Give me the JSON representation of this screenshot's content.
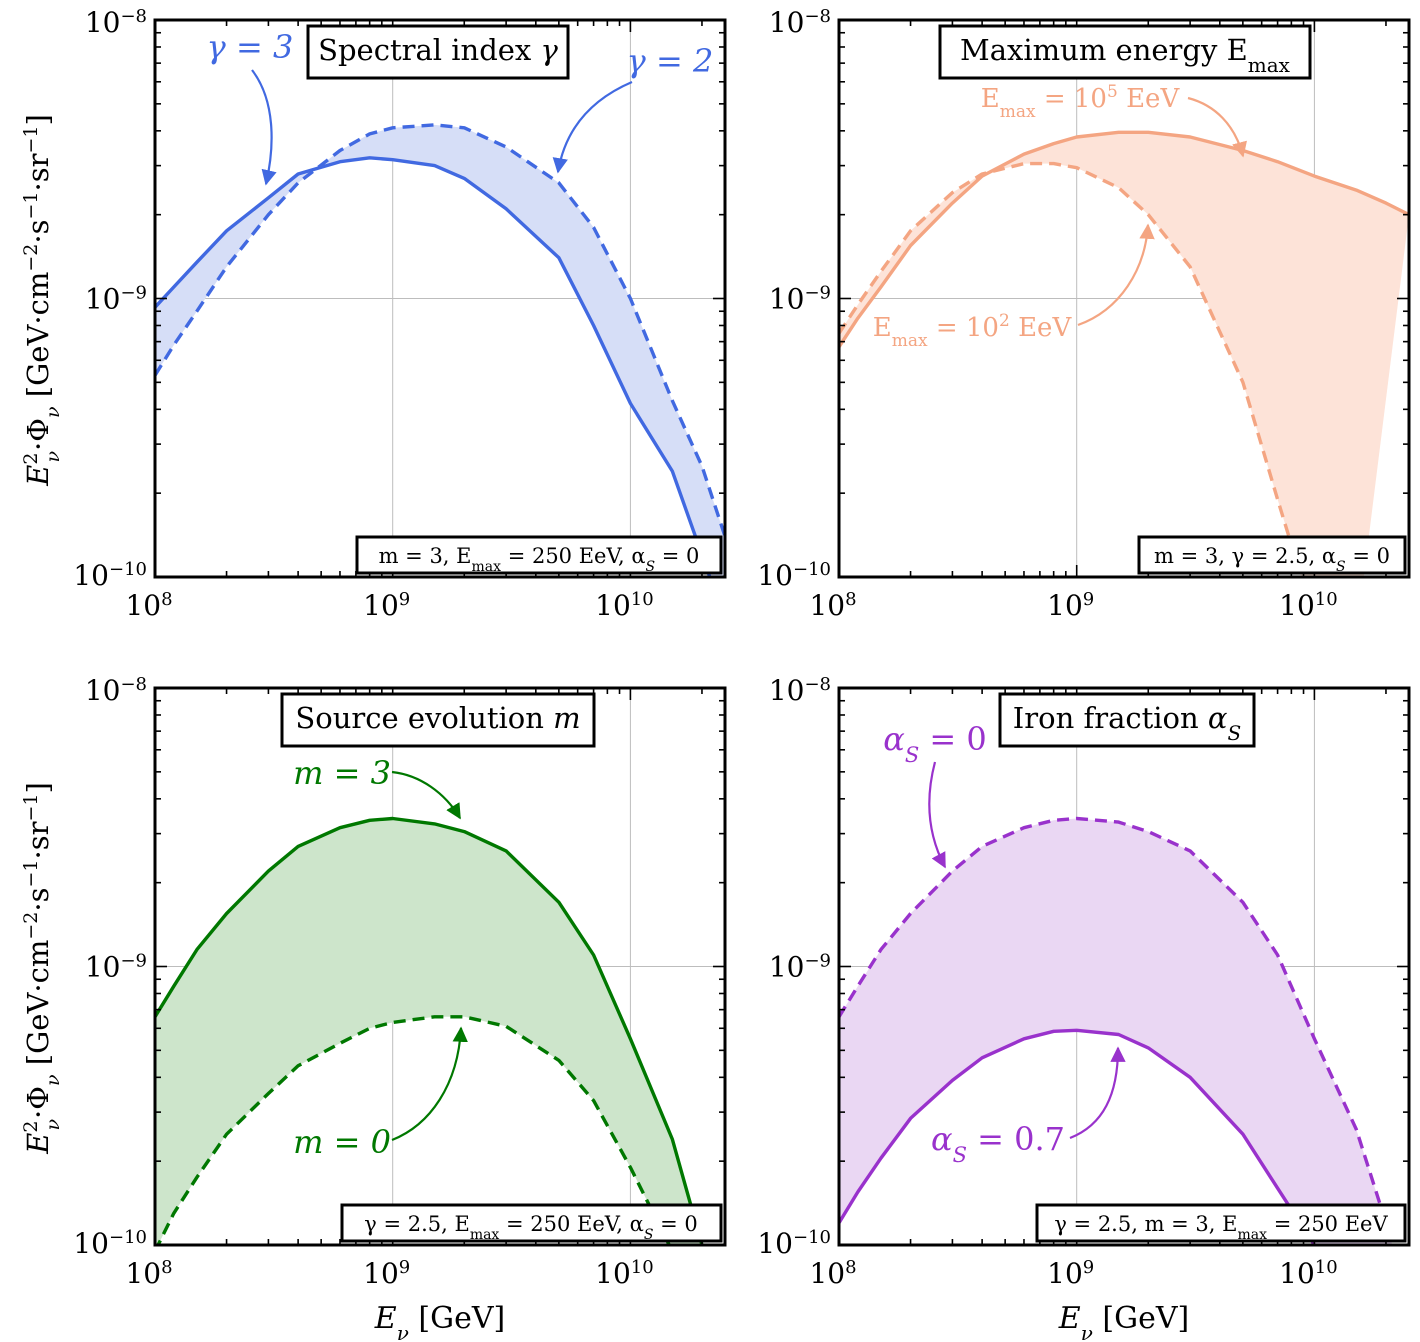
{
  "figure": {
    "ylabel_main": "E",
    "ylabel_sup": "2",
    "ylabel_sub": "ν",
    "ylabel_rest": "·Φ",
    "ylabel_rest_sub": "ν",
    "ylabel_units": " [GeV·cm",
    "ylabel_units_sup1": "−2",
    "ylabel_units_mid": "·s",
    "ylabel_units_sup2": "−1",
    "ylabel_units_mid2": "·sr",
    "ylabel_units_sup3": "−1",
    "ylabel_units_end": "]",
    "xlabel_main": "E",
    "xlabel_sub": "ν",
    "xlabel_units": " [GeV]",
    "xtick_labels": [
      {
        "base": "10",
        "exp": "8"
      },
      {
        "base": "10",
        "exp": "9"
      },
      {
        "base": "10",
        "exp": "10"
      }
    ],
    "ytick_labels": [
      {
        "base": "10",
        "exp": "−8"
      },
      {
        "base": "10",
        "exp": "−9"
      },
      {
        "base": "10",
        "exp": "−10"
      }
    ]
  },
  "chart_data": [
    {
      "type": "area",
      "panel": "top-left",
      "title": "Spectral index γ",
      "title_parts": {
        "text": "Spectral index ",
        "symbol": "γ"
      },
      "color": "#4169e1",
      "fill": "#d6def7",
      "xscale": "log",
      "yscale": "log",
      "xlim": [
        100000000,
        25000000000
      ],
      "ylim": [
        1e-10,
        1e-08
      ],
      "grid": true,
      "params": {
        "math": "m = 3, E",
        "sub": "max",
        "rest": " = 250 EeV, α",
        "sub2": "S",
        "rest2": " = 0"
      },
      "x": [
        100000000,
        120000000,
        150000000,
        200000000,
        300000000,
        400000000,
        600000000,
        800000000,
        1000000000,
        1500000000,
        2000000000,
        3000000000,
        5000000000,
        7000000000,
        10000000000,
        15000000000,
        20000000000,
        25000000000
      ],
      "series": [
        {
          "name": "γ = 3",
          "style": "solid",
          "values": [
            9.3e-10,
            1.1e-09,
            1.35e-09,
            1.75e-09,
            2.3e-09,
            2.8e-09,
            3.1e-09,
            3.2e-09,
            3.15e-09,
            3e-09,
            2.7e-09,
            2.1e-09,
            1.4e-09,
            8e-10,
            4.2e-10,
            2.4e-10,
            1.2e-10,
            7e-11
          ]
        },
        {
          "name": "γ = 2",
          "style": "dashed",
          "values": [
            5.3e-10,
            6.8e-10,
            9e-10,
            1.3e-09,
            2e-09,
            2.6e-09,
            3.4e-09,
            3.9e-09,
            4.1e-09,
            4.2e-09,
            4.1e-09,
            3.5e-09,
            2.6e-09,
            1.8e-09,
            1e-09,
            4.3e-10,
            2.5e-10,
            1.4e-10
          ]
        }
      ],
      "annotations": [
        {
          "label": "γ = 3",
          "text": "γ = 3"
        },
        {
          "label": "γ = 2",
          "text": "γ = 2"
        }
      ]
    },
    {
      "type": "area",
      "panel": "top-right",
      "title": "Maximum energy E max",
      "title_parts": {
        "text": "Maximum energy E",
        "sub": "max"
      },
      "color": "#f4a582",
      "fill": "#fde3d8",
      "xscale": "log",
      "yscale": "log",
      "xlim": [
        100000000,
        25000000000
      ],
      "ylim": [
        1e-10,
        1e-08
      ],
      "grid": true,
      "params": {
        "math": "m = 3, γ = 2.5, α",
        "sub": "S",
        "rest": " = 0"
      },
      "x": [
        100000000,
        120000000,
        150000000,
        200000000,
        300000000,
        400000000,
        600000000,
        800000000,
        1000000000,
        1500000000,
        2000000000,
        3000000000,
        5000000000,
        7000000000,
        10000000000,
        15000000000,
        20000000000,
        25000000000
      ],
      "series": [
        {
          "name": "E_max = 10^5 EeV",
          "style": "solid",
          "values": [
            6.7e-10,
            8.5e-10,
            1.1e-09,
            1.55e-09,
            2.2e-09,
            2.75e-09,
            3.3e-09,
            3.6e-09,
            3.8e-09,
            3.95e-09,
            3.95e-09,
            3.8e-09,
            3.4e-09,
            3.1e-09,
            2.75e-09,
            2.45e-09,
            2.2e-09,
            2e-09
          ]
        },
        {
          "name": "E_max = 10^2 EeV",
          "style": "dashed",
          "values": [
            7.5e-10,
            9.5e-10,
            1.25e-09,
            1.75e-09,
            2.4e-09,
            2.8e-09,
            3.05e-09,
            3.05e-09,
            2.95e-09,
            2.5e-09,
            2e-09,
            1.3e-09,
            5e-10,
            1.9e-10,
            7e-11,
            null,
            null,
            null
          ]
        }
      ],
      "annotations": [
        {
          "label": "E_max = 10^5 EeV",
          "pre": "E",
          "sub": "max",
          "mid": " = 10",
          "sup": "5",
          "post": " EeV"
        },
        {
          "label": "E_max = 10^2 EeV",
          "pre": "E",
          "sub": "max",
          "mid": " = 10",
          "sup": "2",
          "post": " EeV"
        }
      ]
    },
    {
      "type": "area",
      "panel": "bottom-left",
      "title": "Source evolution m",
      "title_parts": {
        "text": "Source evolution ",
        "symbol": "m"
      },
      "color": "#007800",
      "fill": "#cde5cb",
      "xscale": "log",
      "yscale": "log",
      "xlim": [
        100000000,
        25000000000
      ],
      "ylim": [
        1e-10,
        1e-08
      ],
      "grid": true,
      "params": {
        "math": "γ = 2.5, E",
        "sub": "max",
        "rest": " = 250 EeV, α",
        "sub2": "S",
        "rest2": " = 0"
      },
      "x": [
        100000000,
        120000000,
        150000000,
        200000000,
        300000000,
        400000000,
        600000000,
        800000000,
        1000000000,
        1500000000,
        2000000000,
        3000000000,
        5000000000,
        7000000000,
        10000000000,
        15000000000,
        20000000000,
        25000000000
      ],
      "series": [
        {
          "name": "m = 3",
          "style": "solid",
          "values": [
            6.6e-10,
            8.5e-10,
            1.15e-09,
            1.55e-09,
            2.2e-09,
            2.7e-09,
            3.15e-09,
            3.35e-09,
            3.4e-09,
            3.25e-09,
            3.05e-09,
            2.6e-09,
            1.7e-09,
            1.1e-09,
            5.5e-10,
            2.4e-10,
            1e-10,
            null
          ]
        },
        {
          "name": "m = 0",
          "style": "dashed",
          "values": [
            9.5e-11,
            1.3e-10,
            1.75e-10,
            2.5e-10,
            3.5e-10,
            4.4e-10,
            5.3e-10,
            6e-10,
            6.3e-10,
            6.6e-10,
            6.6e-10,
            6.1e-10,
            4.6e-10,
            3.3e-10,
            1.9e-10,
            9.5e-11,
            null,
            null
          ]
        }
      ],
      "annotations": [
        {
          "label": "m = 3",
          "text": "m = 3"
        },
        {
          "label": "m = 0",
          "text": "m = 0"
        }
      ]
    },
    {
      "type": "area",
      "panel": "bottom-right",
      "title": "Iron fraction α S",
      "title_parts": {
        "text": "Iron fraction ",
        "symbol": "α",
        "sub": "S"
      },
      "color": "#9932cc",
      "fill": "#ead7f3",
      "xscale": "log",
      "yscale": "log",
      "xlim": [
        100000000,
        25000000000
      ],
      "ylim": [
        1e-10,
        1e-08
      ],
      "grid": true,
      "params": {
        "math": "γ = 2.5, m = 3, E",
        "sub": "max",
        "rest": " = 250 EeV"
      },
      "x": [
        100000000,
        120000000,
        150000000,
        200000000,
        300000000,
        400000000,
        600000000,
        800000000,
        1000000000,
        1500000000,
        2000000000,
        3000000000,
        5000000000,
        7000000000,
        10000000000,
        15000000000,
        20000000000,
        25000000000
      ],
      "series": [
        {
          "name": "α_S = 0",
          "style": "dashed",
          "values": [
            6.6e-10,
            8.5e-10,
            1.15e-09,
            1.55e-09,
            2.2e-09,
            2.7e-09,
            3.15e-09,
            3.35e-09,
            3.4e-09,
            3.3e-09,
            3.05e-09,
            2.6e-09,
            1.7e-09,
            1.1e-09,
            5.5e-10,
            2.6e-10,
            1.2e-10,
            null
          ]
        },
        {
          "name": "α_S = 0.7",
          "style": "solid",
          "values": [
            1.2e-10,
            1.55e-10,
            2.05e-10,
            2.85e-10,
            3.9e-10,
            4.7e-10,
            5.5e-10,
            5.85e-10,
            5.9e-10,
            5.7e-10,
            5.1e-10,
            4e-10,
            2.5e-10,
            1.6e-10,
            1e-10,
            null,
            null,
            null
          ]
        }
      ],
      "annotations": [
        {
          "label": "α_S = 0",
          "symbol": "α",
          "sub": "S",
          "rest": " = 0"
        },
        {
          "label": "α_S = 0.7",
          "symbol": "α",
          "sub": "S",
          "rest": " = 0.7"
        }
      ]
    }
  ]
}
